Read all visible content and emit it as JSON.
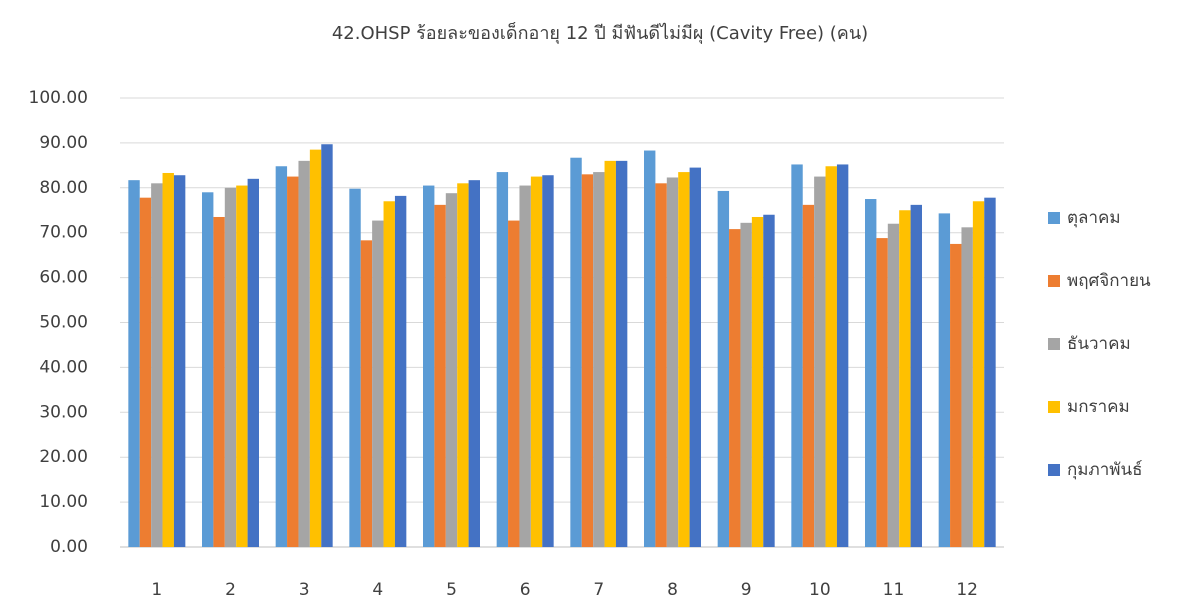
{
  "chart_data": {
    "type": "bar",
    "title": "42.OHSP ร้อยละของเด็กอายุ 12 ปี มีฟันดีไม่มีผุ (Cavity Free) (คน)",
    "categories": [
      "1",
      "2",
      "3",
      "4",
      "5",
      "6",
      "7",
      "8",
      "9",
      "10",
      "11",
      "12"
    ],
    "series": [
      {
        "name": "ตุลาคม",
        "color": "#5B9BD5",
        "values": [
          81.7,
          79.0,
          84.8,
          79.8,
          80.5,
          83.5,
          86.7,
          88.3,
          79.3,
          85.2,
          77.5,
          74.3
        ]
      },
      {
        "name": "พฤศจิกายน",
        "color": "#ED7D31",
        "values": [
          77.8,
          73.5,
          82.5,
          68.3,
          76.2,
          72.7,
          83.0,
          81.0,
          70.8,
          76.2,
          68.8,
          67.5
        ]
      },
      {
        "name": "ธันวาคม",
        "color": "#A5A5A5",
        "values": [
          81.0,
          80.0,
          86.0,
          72.7,
          78.8,
          80.5,
          83.5,
          82.3,
          72.2,
          82.5,
          72.0,
          71.2
        ]
      },
      {
        "name": "มกราคม",
        "color": "#FFC000",
        "values": [
          83.3,
          80.5,
          88.5,
          77.0,
          81.0,
          82.5,
          86.0,
          83.5,
          73.5,
          84.8,
          75.0,
          77.0
        ]
      },
      {
        "name": "กุมภาพันธ์",
        "color": "#4472C4",
        "values": [
          82.8,
          82.0,
          89.7,
          78.2,
          81.7,
          82.8,
          86.0,
          84.5,
          74.0,
          85.2,
          76.2,
          77.8
        ]
      }
    ],
    "ylim": [
      0,
      100
    ],
    "yticks": [
      {
        "value": 0,
        "label": "0.00"
      },
      {
        "value": 10,
        "label": "10.00"
      },
      {
        "value": 20,
        "label": "20.00"
      },
      {
        "value": 30,
        "label": "30.00"
      },
      {
        "value": 40,
        "label": "40.00"
      },
      {
        "value": 50,
        "label": "50.00"
      },
      {
        "value": 60,
        "label": "60.00"
      },
      {
        "value": 70,
        "label": "70.00"
      },
      {
        "value": 80,
        "label": "80.00"
      },
      {
        "value": 90,
        "label": "90.00"
      },
      {
        "value": 100,
        "label": "100.00"
      }
    ],
    "grid": true,
    "legend": "right"
  }
}
